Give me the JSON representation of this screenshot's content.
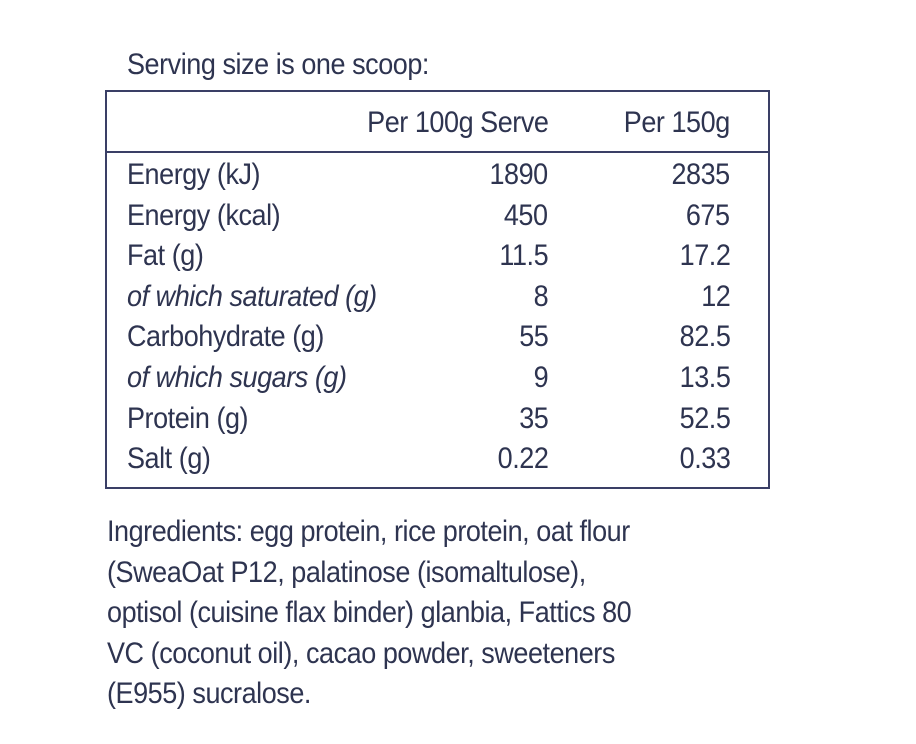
{
  "serving_text": "Serving size is one scoop:",
  "table": {
    "headers": [
      "",
      "Per 100g Serve",
      "Per 150g"
    ],
    "rows": [
      {
        "label": "Energy (kJ)",
        "per100": "1890",
        "per150": "2835",
        "italic": false
      },
      {
        "label": "Energy (kcal)",
        "per100": "450",
        "per150": "675",
        "italic": false
      },
      {
        "label": "Fat (g)",
        "per100": "11.5",
        "per150": "17.2",
        "italic": false
      },
      {
        "label": "of which saturated (g)",
        "per100": "8",
        "per150": "12",
        "italic": true
      },
      {
        "label": "Carbohydrate (g)",
        "per100": "55",
        "per150": "82.5",
        "italic": false
      },
      {
        "label": "of which sugars (g)",
        "per100": "9",
        "per150": "13.5",
        "italic": true
      },
      {
        "label": "Protein (g)",
        "per100": "35",
        "per150": "52.5",
        "italic": false
      },
      {
        "label": "Salt (g)",
        "per100": "0.22",
        "per150": "0.33",
        "italic": false
      }
    ]
  },
  "ingredients_lines": [
    "Ingredients: egg protein, rice protein, oat flour",
    "(SweaOat P12, palatinose (isomaltulose),",
    "optisol (cuisine flax binder) glanbia, Fattics 80",
    "VC (coconut oil), cacao powder, sweeteners",
    "(E955) sucralose."
  ],
  "colors": {
    "text": "#2e3450",
    "border": "#3a3f66",
    "background": "#ffffff"
  }
}
